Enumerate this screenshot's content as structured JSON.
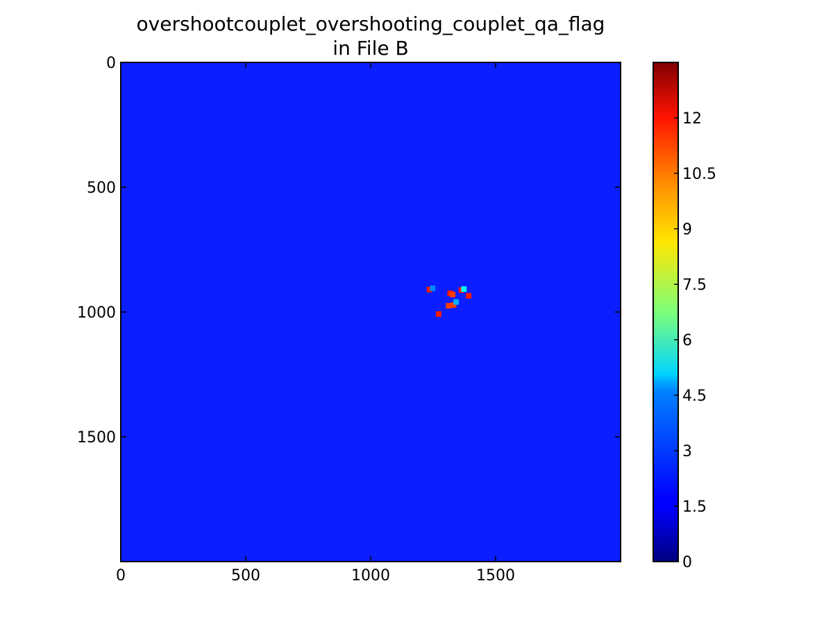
{
  "chart_data": {
    "type": "heatmap",
    "title": "overshootcouplet_overshooting_couplet_qa_flag",
    "subtitle": "in File B",
    "xlabel": "",
    "ylabel": "",
    "xlim": [
      0,
      2000
    ],
    "ylim": [
      2000,
      0
    ],
    "x_ticks": [
      "0",
      "500",
      "1000",
      "1500"
    ],
    "y_ticks": [
      "0",
      "500",
      "1000",
      "1500"
    ],
    "background_value": 2,
    "colormap": "jet",
    "color_range": [
      0,
      13.5
    ],
    "colorbar_ticks": [
      "0",
      "1.5",
      "3",
      "4.5",
      "6",
      "7.5",
      "9",
      "10.5",
      "12"
    ],
    "points": [
      {
        "x": 1235,
        "y": 910,
        "value": 11.5
      },
      {
        "x": 1248,
        "y": 905,
        "value": 3.5
      },
      {
        "x": 1318,
        "y": 925,
        "value": 11.5
      },
      {
        "x": 1328,
        "y": 930,
        "value": 11
      },
      {
        "x": 1363,
        "y": 912,
        "value": 11.5
      },
      {
        "x": 1373,
        "y": 908,
        "value": 5
      },
      {
        "x": 1392,
        "y": 935,
        "value": 11.5
      },
      {
        "x": 1312,
        "y": 975,
        "value": 11
      },
      {
        "x": 1332,
        "y": 972,
        "value": 11
      },
      {
        "x": 1342,
        "y": 960,
        "value": 4
      },
      {
        "x": 1272,
        "y": 1008,
        "value": 11.5
      }
    ]
  }
}
